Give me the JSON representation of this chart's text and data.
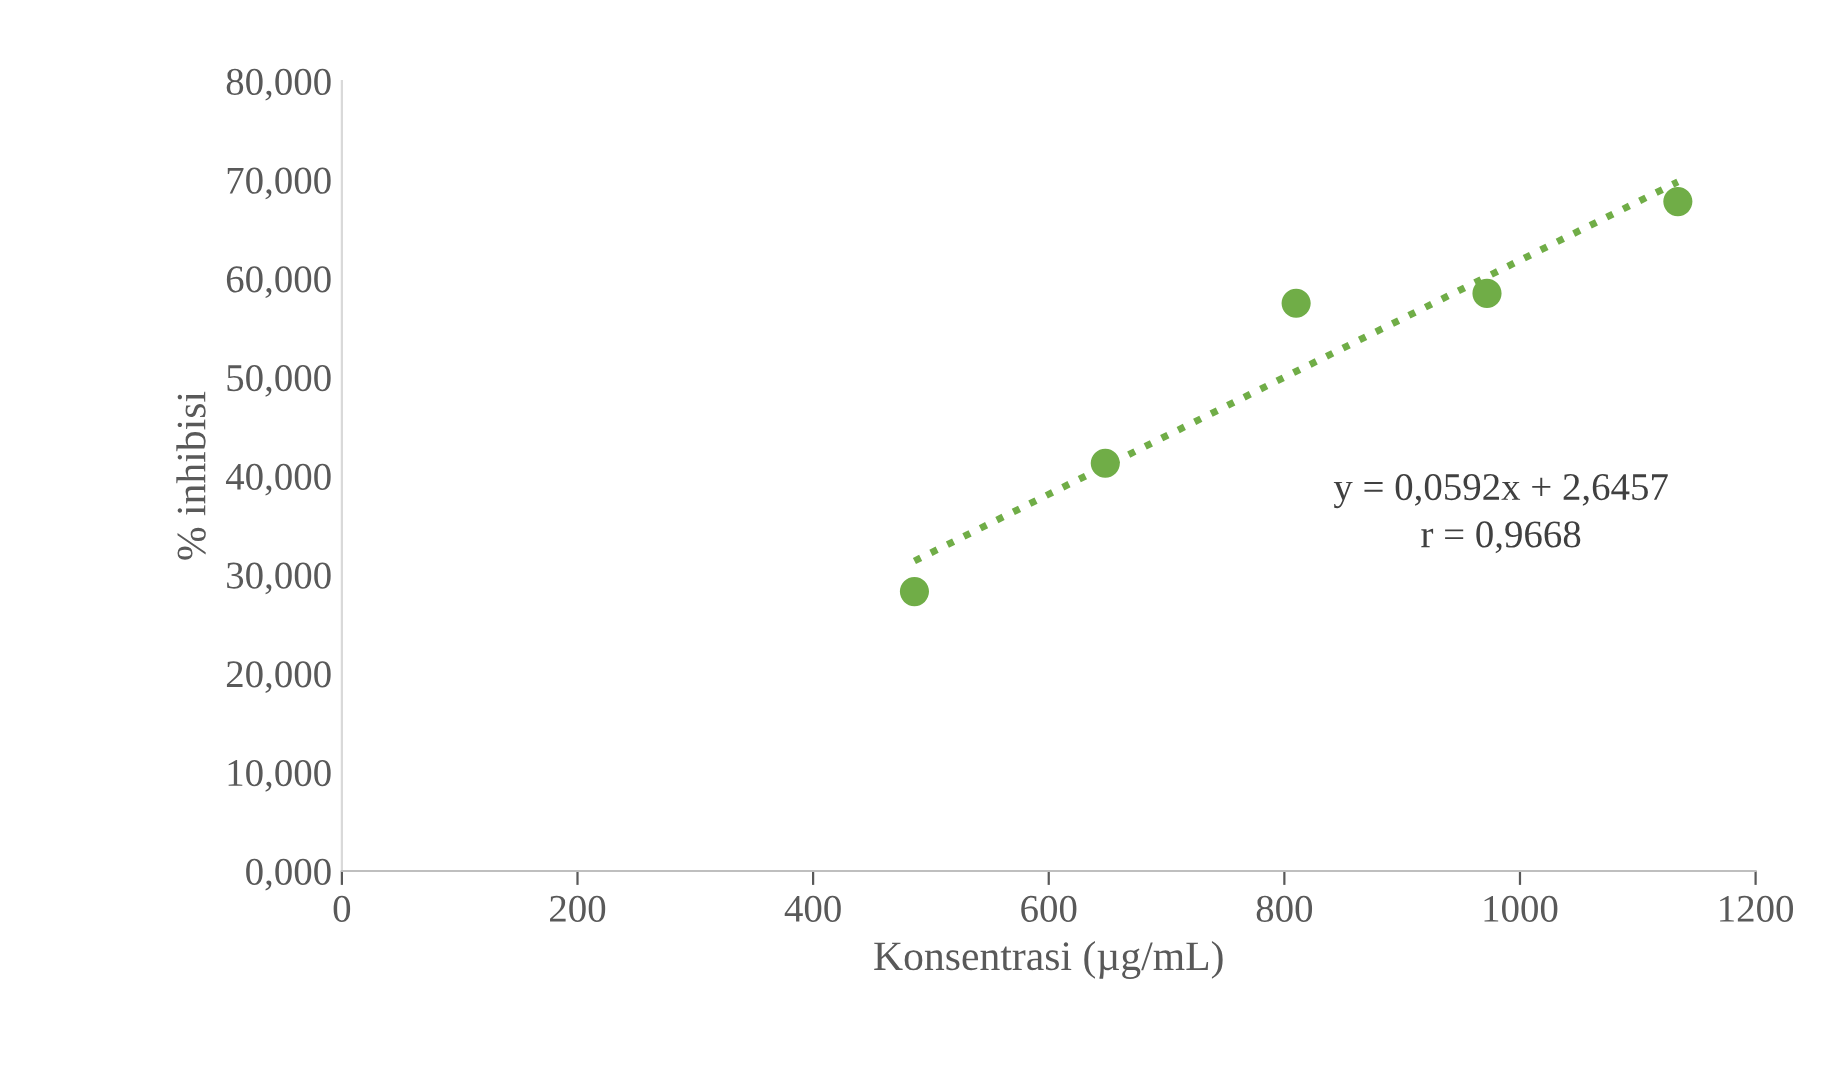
{
  "chart_data": {
    "type": "scatter",
    "xlabel": "Konsentrasi (µg/mL)",
    "ylabel": "% inhibisi",
    "series": [
      {
        "color": "#70ad47",
        "marker": "circle",
        "x": [
          486,
          648,
          810,
          972,
          1134
        ],
        "values": [
          28.3,
          41.3,
          57.5,
          58.5,
          67.8
        ]
      },
      {
        "type": "line",
        "color": "#70ad47",
        "line_style": "dotted",
        "marker": "none",
        "x": [
          486,
          1134
        ],
        "values": [
          31.4,
          69.8
        ]
      }
    ],
    "annotations": [
      "y = 0,0592x + 2,6457",
      "r = 0,9668"
    ],
    "xlim": [
      0,
      1200
    ],
    "xticks": [
      0,
      200,
      400,
      600,
      800,
      1000,
      1200
    ],
    "ylim": [
      0,
      80
    ],
    "yticks": [
      {
        "value": 0,
        "label": "0,000"
      },
      {
        "value": 10,
        "label": "10,000"
      },
      {
        "value": 20,
        "label": "20,000"
      },
      {
        "value": 30,
        "label": "30,000"
      },
      {
        "value": 40,
        "label": "40,000"
      },
      {
        "value": 50,
        "label": "50,000"
      },
      {
        "value": 60,
        "label": "60,000"
      },
      {
        "value": 70,
        "label": "70,000"
      },
      {
        "value": 80,
        "label": "80,000"
      }
    ],
    "grid": false,
    "legend": false
  }
}
